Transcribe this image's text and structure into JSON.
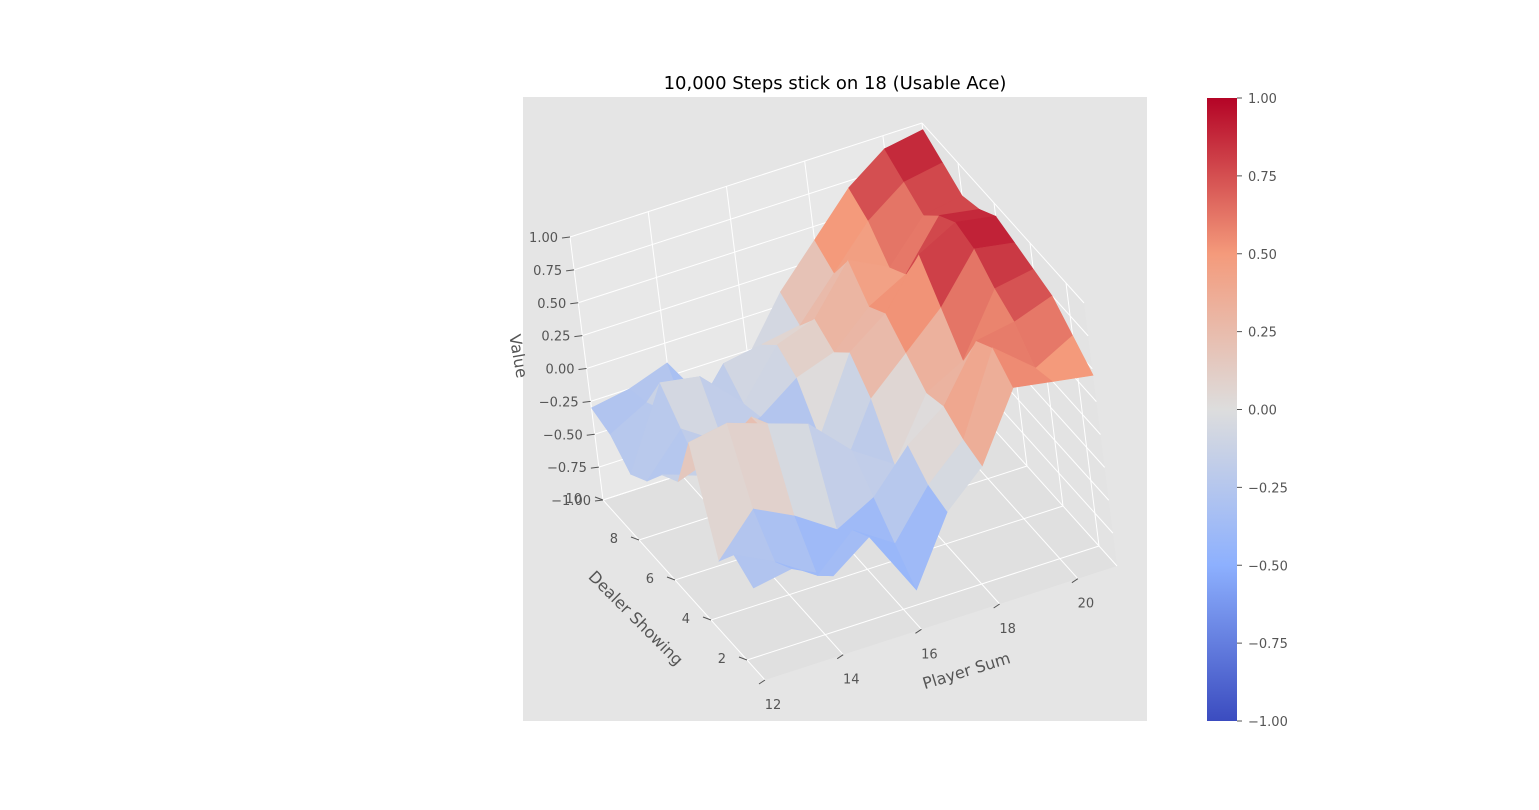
{
  "chart_data": {
    "type": "surface",
    "title": "10,000 Steps stick on 18 (Usable Ace)",
    "xlabel": "Player Sum",
    "ylabel": "Dealer Showing",
    "zlabel": "Value",
    "x": [
      12,
      13,
      14,
      15,
      16,
      17,
      18,
      19,
      20,
      21
    ],
    "y": [
      1,
      2,
      3,
      4,
      5,
      6,
      7,
      8,
      9,
      10
    ],
    "xticks": [
      "12",
      "14",
      "16",
      "18",
      "20"
    ],
    "yticks": [
      "2",
      "4",
      "6",
      "8",
      "10"
    ],
    "zticks": [
      "−1.00",
      "−0.75",
      "−0.50",
      "−0.25",
      "0.00",
      "0.25",
      "0.50",
      "0.75",
      "1.00"
    ],
    "zlim": [
      -1.0,
      1.0
    ],
    "colormap": "coolwarm",
    "colorbar": {
      "range": [
        -1.0,
        1.0
      ],
      "ticks": [
        "−1.00",
        "−0.75",
        "−0.50",
        "−0.25",
        "0.00",
        "0.25",
        "0.50",
        "0.75",
        "1.00"
      ]
    },
    "z": [
      [
        -0.3,
        -0.25,
        -0.4,
        -0.2,
        -0.7,
        -0.2,
        0.05,
        0.55,
        0.5,
        0.45
      ],
      [
        -0.2,
        -0.35,
        -0.55,
        -0.3,
        -0.5,
        -0.15,
        0.1,
        0.7,
        0.45,
        0.6
      ],
      [
        -0.4,
        -0.1,
        -0.25,
        -0.45,
        -0.3,
        0.0,
        0.2,
        0.6,
        0.65,
        0.75
      ],
      [
        0.35,
        0.4,
        0.3,
        0.2,
        -0.1,
        -0.3,
        0.15,
        0.3,
        0.75,
        0.8
      ],
      [
        -0.1,
        0.0,
        0.2,
        -0.25,
        -0.45,
        0.05,
        0.3,
        0.55,
        0.9,
        0.85
      ],
      [
        -0.2,
        -0.3,
        -0.05,
        -0.55,
        -0.3,
        0.25,
        0.45,
        0.8,
        0.95,
        0.9
      ],
      [
        -0.4,
        -0.1,
        -0.3,
        -0.2,
        0.0,
        0.1,
        0.35,
        0.5,
        0.85,
        0.8
      ],
      [
        -0.5,
        0.1,
        0.05,
        -0.25,
        0.1,
        0.2,
        0.55,
        0.4,
        0.7,
        0.75
      ],
      [
        -0.35,
        -0.2,
        -0.45,
        -0.1,
        -0.05,
        0.0,
        0.3,
        0.6,
        0.8,
        0.85
      ],
      [
        -0.3,
        -0.25,
        -0.15,
        -0.6,
        -0.3,
        0.1,
        0.4,
        0.7,
        0.9,
        0.95
      ]
    ]
  }
}
